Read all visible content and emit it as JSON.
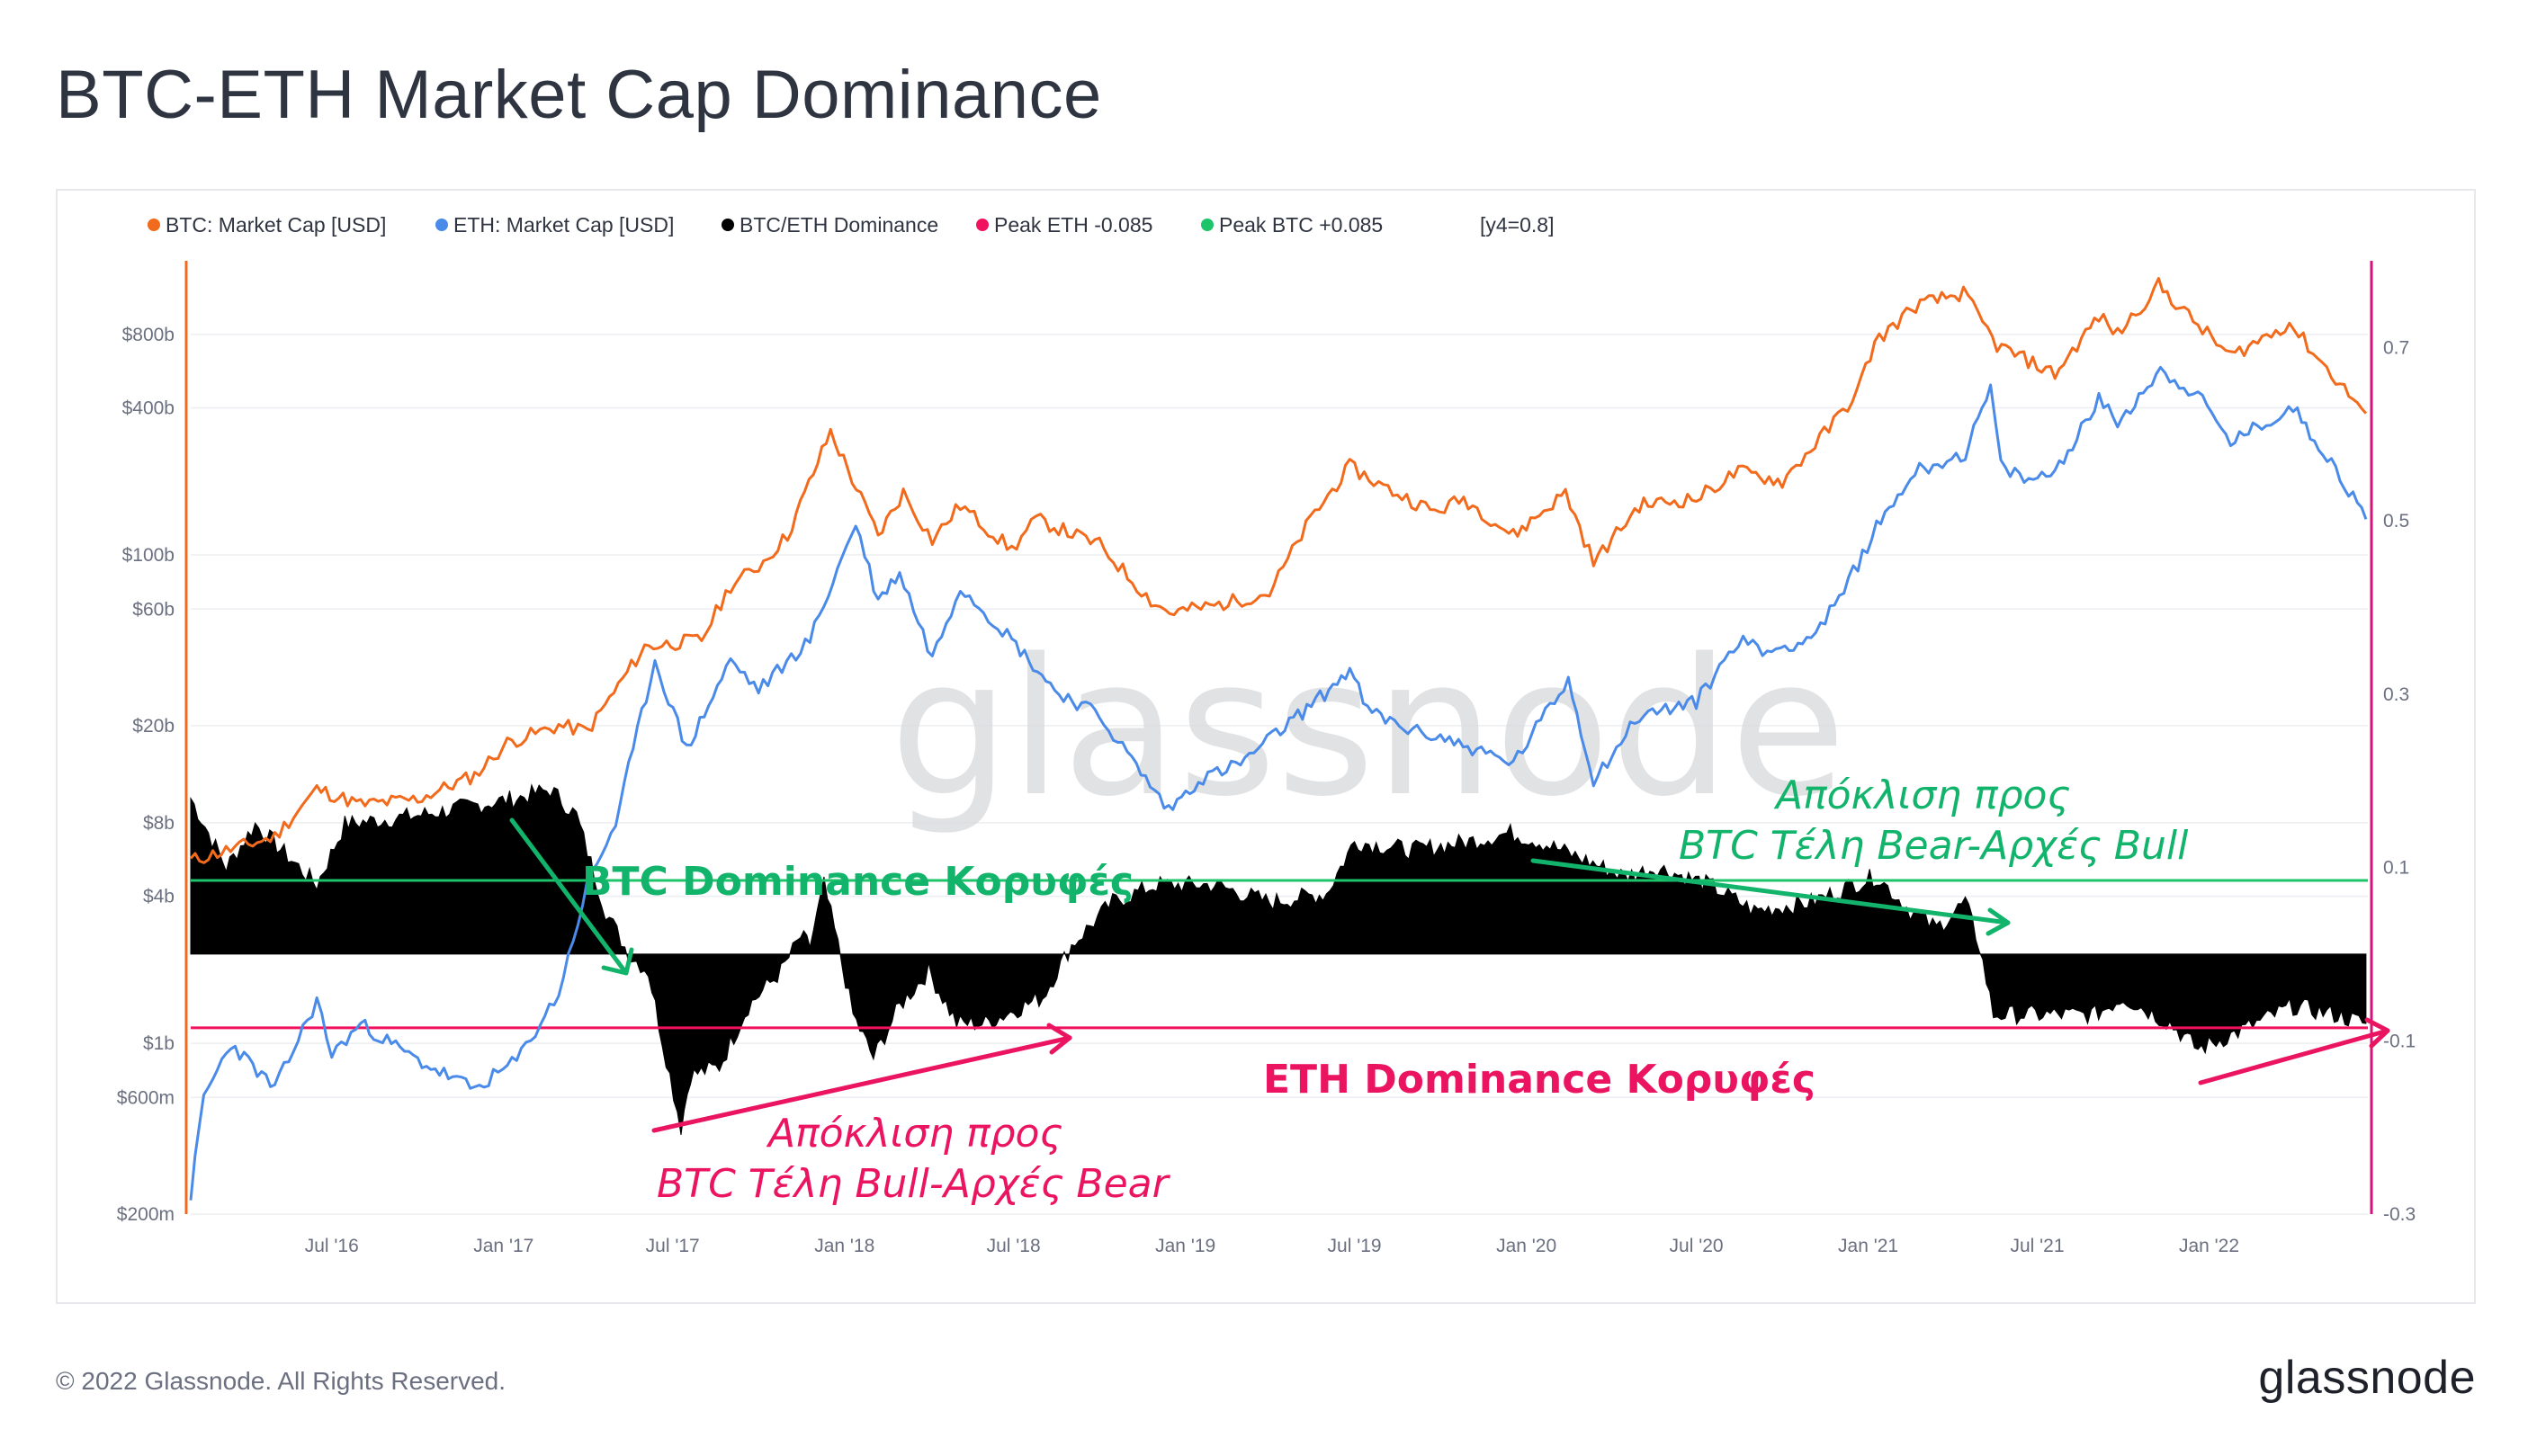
{
  "header": {
    "title": "BTC-ETH Market Cap Dominance"
  },
  "footer": {
    "copyright": "© 2022 Glassnode. All Rights Reserved.",
    "logo": "glassnode"
  },
  "watermark": "glassnode",
  "colors": {
    "btc": "#f26a1b",
    "eth": "#4a8ae8",
    "dominance": "#000000",
    "peak_eth": "#f0125e",
    "peak_btc": "#1ec46a",
    "annot_green": "#12b36b",
    "annot_pink": "#eb1460"
  },
  "chart_data": {
    "type": "line",
    "legend": [
      {
        "label": "BTC: Market Cap [USD]",
        "color": "#f26a1b"
      },
      {
        "label": "ETH: Market Cap [USD]",
        "color": "#4a8ae8"
      },
      {
        "label": "BTC/ETH Dominance",
        "color": "#000000"
      },
      {
        "label": "Peak ETH -0.085",
        "color": "#f0125e"
      },
      {
        "label": "Peak BTC +0.085",
        "color": "#1ec46a"
      },
      {
        "label": "[y4=0.8]",
        "color": ""
      }
    ],
    "x_ticks": [
      "Jul '16",
      "Jan '17",
      "Jul '17",
      "Jan '18",
      "Jul '18",
      "Jan '19",
      "Jul '19",
      "Jan '20",
      "Jul '20",
      "Jan '21",
      "Jul '21",
      "Jan '22"
    ],
    "x_range": [
      "2016-02-01",
      "2022-06-20"
    ],
    "y_left": {
      "scale": "log",
      "ticks": [
        "$200m",
        "$600m",
        "$1b",
        "$4b",
        "$8b",
        "$20b",
        "$60b",
        "$100b",
        "$400b",
        "$800b"
      ],
      "range": [
        200000000,
        1600000000000
      ]
    },
    "y_right": {
      "scale": "linear",
      "ticks": [
        "-0.3",
        "-0.1",
        "0.1",
        "0.3",
        "0.5",
        "0.7"
      ],
      "range": [
        -0.3,
        0.8
      ]
    },
    "peak_lines": {
      "peak_btc": 0.085,
      "peak_eth": -0.085
    },
    "series": [
      {
        "name": "BTC: Market Cap [USD]",
        "axis": "left",
        "points": [
          [
            "2016-02-01",
            5600000000.0
          ],
          [
            "2016-05-01",
            7000000000.0
          ],
          [
            "2016-06-15",
            11000000000.0
          ],
          [
            "2016-08-01",
            9500000000.0
          ],
          [
            "2016-10-01",
            10000000000.0
          ],
          [
            "2016-12-01",
            12500000000.0
          ],
          [
            "2017-01-05",
            17000000000.0
          ],
          [
            "2017-03-01",
            20000000000.0
          ],
          [
            "2017-04-01",
            19000000000.0
          ],
          [
            "2017-06-01",
            42000000000.0
          ],
          [
            "2017-08-01",
            45000000000.0
          ],
          [
            "2017-09-01",
            75000000000.0
          ],
          [
            "2017-10-01",
            90000000000.0
          ],
          [
            "2017-11-01",
            120000000000.0
          ],
          [
            "2017-12-17",
            320000000000.0
          ],
          [
            "2018-02-06",
            120000000000.0
          ],
          [
            "2018-03-05",
            180000000000.0
          ],
          [
            "2018-04-05",
            115000000000.0
          ],
          [
            "2018-05-05",
            160000000000.0
          ],
          [
            "2018-06-29",
            105000000000.0
          ],
          [
            "2018-07-25",
            140000000000.0
          ],
          [
            "2018-10-01",
            110000000000.0
          ],
          [
            "2018-11-25",
            65000000000.0
          ],
          [
            "2018-12-15",
            58000000000.0
          ],
          [
            "2019-02-01",
            62000000000.0
          ],
          [
            "2019-04-01",
            70000000000.0
          ],
          [
            "2019-05-15",
            140000000000.0
          ],
          [
            "2019-06-26",
            230000000000.0
          ],
          [
            "2019-08-01",
            190000000000.0
          ],
          [
            "2019-09-25",
            150000000000.0
          ],
          [
            "2019-10-26",
            170000000000.0
          ],
          [
            "2019-12-18",
            120000000000.0
          ],
          [
            "2020-02-12",
            180000000000.0
          ],
          [
            "2020-03-13",
            93000000000.0
          ],
          [
            "2020-05-01",
            160000000000.0
          ],
          [
            "2020-07-01",
            170000000000.0
          ],
          [
            "2020-08-15",
            220000000000.0
          ],
          [
            "2020-10-01",
            200000000000.0
          ],
          [
            "2020-11-20",
            330000000000.0
          ],
          [
            "2020-12-20",
            460000000000.0
          ],
          [
            "2021-01-08",
            740000000000.0
          ],
          [
            "2021-02-21",
            1050000000000.0
          ],
          [
            "2021-04-13",
            1180000000000.0
          ],
          [
            "2021-05-19",
            720000000000.0
          ],
          [
            "2021-07-20",
            550000000000.0
          ],
          [
            "2021-09-05",
            950000000000.0
          ],
          [
            "2021-09-25",
            800000000000.0
          ],
          [
            "2021-11-08",
            1270000000000.0
          ],
          [
            "2021-12-10",
            950000000000.0
          ],
          [
            "2022-01-24",
            650000000000.0
          ],
          [
            "2022-03-28",
            890000000000.0
          ],
          [
            "2022-05-12",
            550000000000.0
          ],
          [
            "2022-06-18",
            380000000000.0
          ]
        ]
      },
      {
        "name": "ETH: Market Cap [USD]",
        "axis": "left",
        "points": [
          [
            "2016-02-01",
            240000000.0
          ],
          [
            "2016-02-15",
            600000000.0
          ],
          [
            "2016-03-15",
            1000000000.0
          ],
          [
            "2016-05-01",
            650000000.0
          ],
          [
            "2016-06-15",
            1500000000.0
          ],
          [
            "2016-07-01",
            900000000.0
          ],
          [
            "2016-08-01",
            1200000000.0
          ],
          [
            "2016-10-01",
            850000000.0
          ],
          [
            "2016-12-01",
            650000000.0
          ],
          [
            "2017-01-15",
            850000000.0
          ],
          [
            "2017-03-01",
            1600000000.0
          ],
          [
            "2017-04-01",
            4500000000.0
          ],
          [
            "2017-05-01",
            8000000000.0
          ],
          [
            "2017-06-12",
            37000000000.0
          ],
          [
            "2017-07-16",
            16000000000.0
          ],
          [
            "2017-09-01",
            37000000000.0
          ],
          [
            "2017-10-01",
            28000000000.0
          ],
          [
            "2017-11-25",
            45000000000.0
          ],
          [
            "2018-01-13",
            135000000000.0
          ],
          [
            "2018-02-06",
            65000000000.0
          ],
          [
            "2018-03-01",
            85000000000.0
          ],
          [
            "2018-04-05",
            38000000000.0
          ],
          [
            "2018-05-05",
            75000000000.0
          ],
          [
            "2018-06-29",
            45000000000.0
          ],
          [
            "2018-08-14",
            28000000000.0
          ],
          [
            "2018-10-01",
            22000000000.0
          ],
          [
            "2018-12-14",
            9000000000.0
          ],
          [
            "2019-01-15",
            12000000000.0
          ],
          [
            "2019-03-01",
            14000000000.0
          ],
          [
            "2019-05-30",
            27000000000.0
          ],
          [
            "2019-06-26",
            34000000000.0
          ],
          [
            "2019-07-15",
            23000000000.0
          ],
          [
            "2019-09-01",
            19000000000.0
          ],
          [
            "2019-10-01",
            18000000000.0
          ],
          [
            "2019-12-18",
            14000000000.0
          ],
          [
            "2020-02-15",
            31000000000.0
          ],
          [
            "2020-03-13",
            12000000000.0
          ],
          [
            "2020-05-01",
            22000000000.0
          ],
          [
            "2020-07-01",
            25000000000.0
          ],
          [
            "2020-08-15",
            45000000000.0
          ],
          [
            "2020-09-15",
            40000000000.0
          ],
          [
            "2020-11-01",
            46000000000.0
          ],
          [
            "2020-12-01",
            65000000000.0
          ],
          [
            "2021-01-10",
            130000000000.0
          ],
          [
            "2021-02-20",
            220000000000.0
          ],
          [
            "2021-04-15",
            260000000000.0
          ],
          [
            "2021-05-12",
            480000000000.0
          ],
          [
            "2021-05-23",
            230000000000.0
          ],
          [
            "2021-06-22",
            200000000000.0
          ],
          [
            "2021-07-20",
            220000000000.0
          ],
          [
            "2021-09-05",
            430000000000.0
          ],
          [
            "2021-09-25",
            350000000000.0
          ],
          [
            "2021-11-10",
            570000000000.0
          ],
          [
            "2021-12-20",
            450000000000.0
          ],
          [
            "2022-01-24",
            290000000000.0
          ],
          [
            "2022-04-01",
            400000000000.0
          ],
          [
            "2022-05-12",
            240000000000.0
          ],
          [
            "2022-06-18",
            140000000000.0
          ]
        ]
      },
      {
        "name": "BTC/ETH Dominance",
        "axis": "right",
        "style": "area",
        "points": [
          [
            "2016-02-01",
            0.18
          ],
          [
            "2016-03-10",
            0.1
          ],
          [
            "2016-04-10",
            0.15
          ],
          [
            "2016-06-15",
            0.08
          ],
          [
            "2016-07-15",
            0.15
          ],
          [
            "2016-10-01",
            0.16
          ],
          [
            "2017-01-15",
            0.18
          ],
          [
            "2017-02-20",
            0.19
          ],
          [
            "2017-03-20",
            0.16
          ],
          [
            "2017-04-20",
            0.05
          ],
          [
            "2017-05-15",
            0.0
          ],
          [
            "2017-06-05",
            -0.02
          ],
          [
            "2017-06-20",
            -0.1
          ],
          [
            "2017-07-10",
            -0.2
          ],
          [
            "2017-07-20",
            -0.14
          ],
          [
            "2017-08-20",
            -0.13
          ],
          [
            "2017-09-20",
            -0.06
          ],
          [
            "2017-10-25",
            -0.02
          ],
          [
            "2017-11-15",
            0.02
          ],
          [
            "2017-11-25",
            0.01
          ],
          [
            "2017-12-10",
            0.08
          ],
          [
            "2017-12-25",
            0.01
          ],
          [
            "2018-01-10",
            -0.07
          ],
          [
            "2018-02-01",
            -0.12
          ],
          [
            "2018-03-01",
            -0.06
          ],
          [
            "2018-04-01",
            -0.02
          ],
          [
            "2018-05-01",
            -0.08
          ],
          [
            "2018-06-01",
            -0.08
          ],
          [
            "2018-08-01",
            -0.05
          ],
          [
            "2018-09-01",
            0.01
          ],
          [
            "2018-10-15",
            0.06
          ],
          [
            "2018-12-01",
            0.08
          ],
          [
            "2019-02-01",
            0.08
          ],
          [
            "2019-04-01",
            0.06
          ],
          [
            "2019-06-01",
            0.07
          ],
          [
            "2019-07-01",
            0.13
          ],
          [
            "2019-09-01",
            0.12
          ],
          [
            "2019-11-01",
            0.13
          ],
          [
            "2019-12-15",
            0.14
          ],
          [
            "2020-01-15",
            0.13
          ],
          [
            "2020-03-01",
            0.11
          ],
          [
            "2020-04-15",
            0.09
          ],
          [
            "2020-05-20",
            0.1
          ],
          [
            "2020-07-15",
            0.08
          ],
          [
            "2020-09-01",
            0.05
          ],
          [
            "2020-11-01",
            0.06
          ],
          [
            "2020-12-15",
            0.08
          ],
          [
            "2021-01-10",
            0.09
          ],
          [
            "2021-02-15",
            0.05
          ],
          [
            "2021-03-15",
            0.03
          ],
          [
            "2021-04-15",
            0.06
          ],
          [
            "2021-04-30",
            0.01
          ],
          [
            "2021-05-15",
            -0.07
          ],
          [
            "2021-06-01",
            -0.07
          ],
          [
            "2021-07-15",
            -0.07
          ],
          [
            "2021-09-01",
            -0.07
          ],
          [
            "2021-10-01",
            -0.05
          ],
          [
            "2021-11-20",
            -0.08
          ],
          [
            "2021-12-20",
            -0.11
          ],
          [
            "2022-02-01",
            -0.09
          ],
          [
            "2022-04-01",
            -0.06
          ],
          [
            "2022-05-15",
            -0.07
          ],
          [
            "2022-06-18",
            -0.08
          ]
        ]
      }
    ],
    "annotations": {
      "btc_peaks": "BTC Dominance Κορυφές",
      "eth_peaks": "ETH Dominance Κορυφές",
      "div_bear_line1": "Απόκλιση προς",
      "div_bear_line2": "BTC Τέλη Bear-Αρχές Bull",
      "div_bull_line1": "Απόκλιση προς",
      "div_bull_line2": "BTC Τέλη Bull-Αρχές Bear"
    }
  }
}
